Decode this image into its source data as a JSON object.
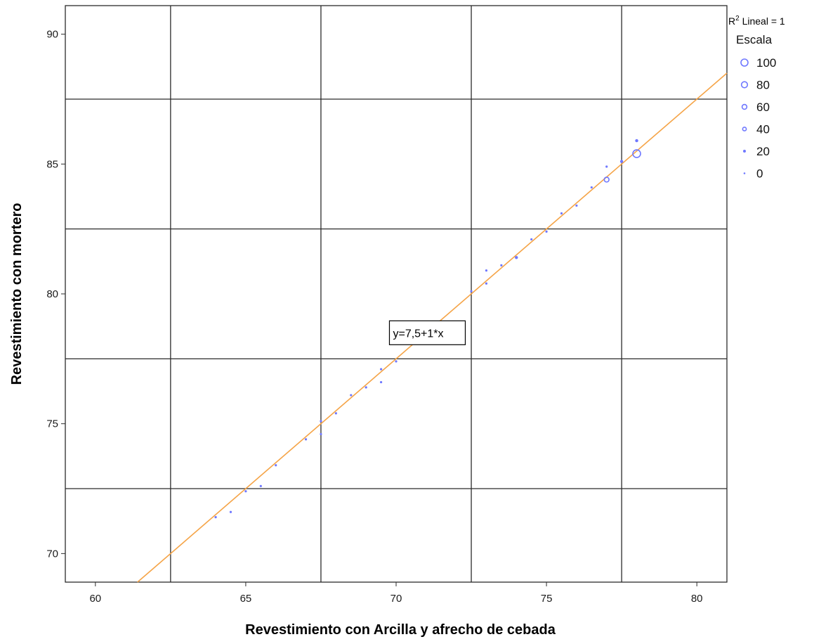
{
  "chart_data": {
    "type": "scatter",
    "xlabel": "Revestimiento con Arcilla y afrecho de cebada",
    "ylabel": "Revestimiento con mortero",
    "xlim": [
      59,
      81
    ],
    "ylim": [
      68.9,
      91.1
    ],
    "x_ticks": [
      60,
      65,
      70,
      75,
      80
    ],
    "y_ticks": [
      70,
      75,
      80,
      85,
      90
    ],
    "x_tick_labels": [
      "60",
      "65",
      "70",
      "75",
      "80"
    ],
    "y_tick_labels": [
      "70",
      "75",
      "80",
      "85",
      "90"
    ],
    "grid_x": [
      62.5,
      67.5,
      72.5,
      77.5
    ],
    "grid_y": [
      72.5,
      77.5,
      82.5,
      87.5
    ],
    "points": [
      {
        "x": 64.0,
        "y": 71.4,
        "size": 5
      },
      {
        "x": 64.5,
        "y": 71.6,
        "size": 5
      },
      {
        "x": 65.0,
        "y": 72.4,
        "size": 5
      },
      {
        "x": 65.5,
        "y": 72.6,
        "size": 5
      },
      {
        "x": 66.0,
        "y": 73.4,
        "size": 5
      },
      {
        "x": 67.0,
        "y": 74.4,
        "size": 5
      },
      {
        "x": 67.5,
        "y": 74.6,
        "size": 5
      },
      {
        "x": 67.5,
        "y": 75.1,
        "size": 5
      },
      {
        "x": 68.0,
        "y": 75.4,
        "size": 5
      },
      {
        "x": 68.5,
        "y": 76.1,
        "size": 5
      },
      {
        "x": 69.0,
        "y": 76.4,
        "size": 5
      },
      {
        "x": 69.5,
        "y": 76.6,
        "size": 5
      },
      {
        "x": 69.5,
        "y": 77.1,
        "size": 5
      },
      {
        "x": 70.0,
        "y": 77.4,
        "size": 5
      },
      {
        "x": 70.5,
        "y": 78.1,
        "size": 5
      },
      {
        "x": 71.0,
        "y": 78.4,
        "size": 5
      },
      {
        "x": 72.5,
        "y": 80.1,
        "size": 5
      },
      {
        "x": 73.0,
        "y": 80.4,
        "size": 5
      },
      {
        "x": 73.0,
        "y": 80.9,
        "size": 5
      },
      {
        "x": 73.5,
        "y": 81.1,
        "size": 5
      },
      {
        "x": 74.0,
        "y": 81.4,
        "size": 10
      },
      {
        "x": 74.5,
        "y": 82.1,
        "size": 5
      },
      {
        "x": 75.0,
        "y": 82.4,
        "size": 5
      },
      {
        "x": 75.5,
        "y": 83.1,
        "size": 5
      },
      {
        "x": 76.0,
        "y": 83.4,
        "size": 5
      },
      {
        "x": 76.5,
        "y": 84.1,
        "size": 5
      },
      {
        "x": 77.0,
        "y": 84.4,
        "size": 40
      },
      {
        "x": 77.0,
        "y": 84.9,
        "size": 5
      },
      {
        "x": 77.5,
        "y": 85.1,
        "size": 10
      },
      {
        "x": 78.0,
        "y": 85.4,
        "size": 100
      },
      {
        "x": 78.0,
        "y": 85.9,
        "size": 10
      }
    ],
    "fit_line": {
      "intercept": 7.5,
      "slope": 1,
      "x_range": [
        61.4,
        81
      ],
      "color": "#f5a447"
    },
    "equation_label": "y=7,5+1*x",
    "equation_anchor": {
      "x": 72.3,
      "y": 78.8
    },
    "r2_label": {
      "prefix": "R",
      "sup": "2",
      "suffix": " Lineal = 1"
    },
    "legend": {
      "title": "Escala",
      "placement": "top-right",
      "entries": [
        {
          "label": "100",
          "size": 100
        },
        {
          "label": "80",
          "size": 80
        },
        {
          "label": "60",
          "size": 60
        },
        {
          "label": "40",
          "size": 40
        },
        {
          "label": "20",
          "size": 20
        },
        {
          "label": "0",
          "size": 0
        }
      ]
    },
    "point_color": "#6f78ff",
    "grid_color": "#2b2b2b",
    "grid": true
  }
}
